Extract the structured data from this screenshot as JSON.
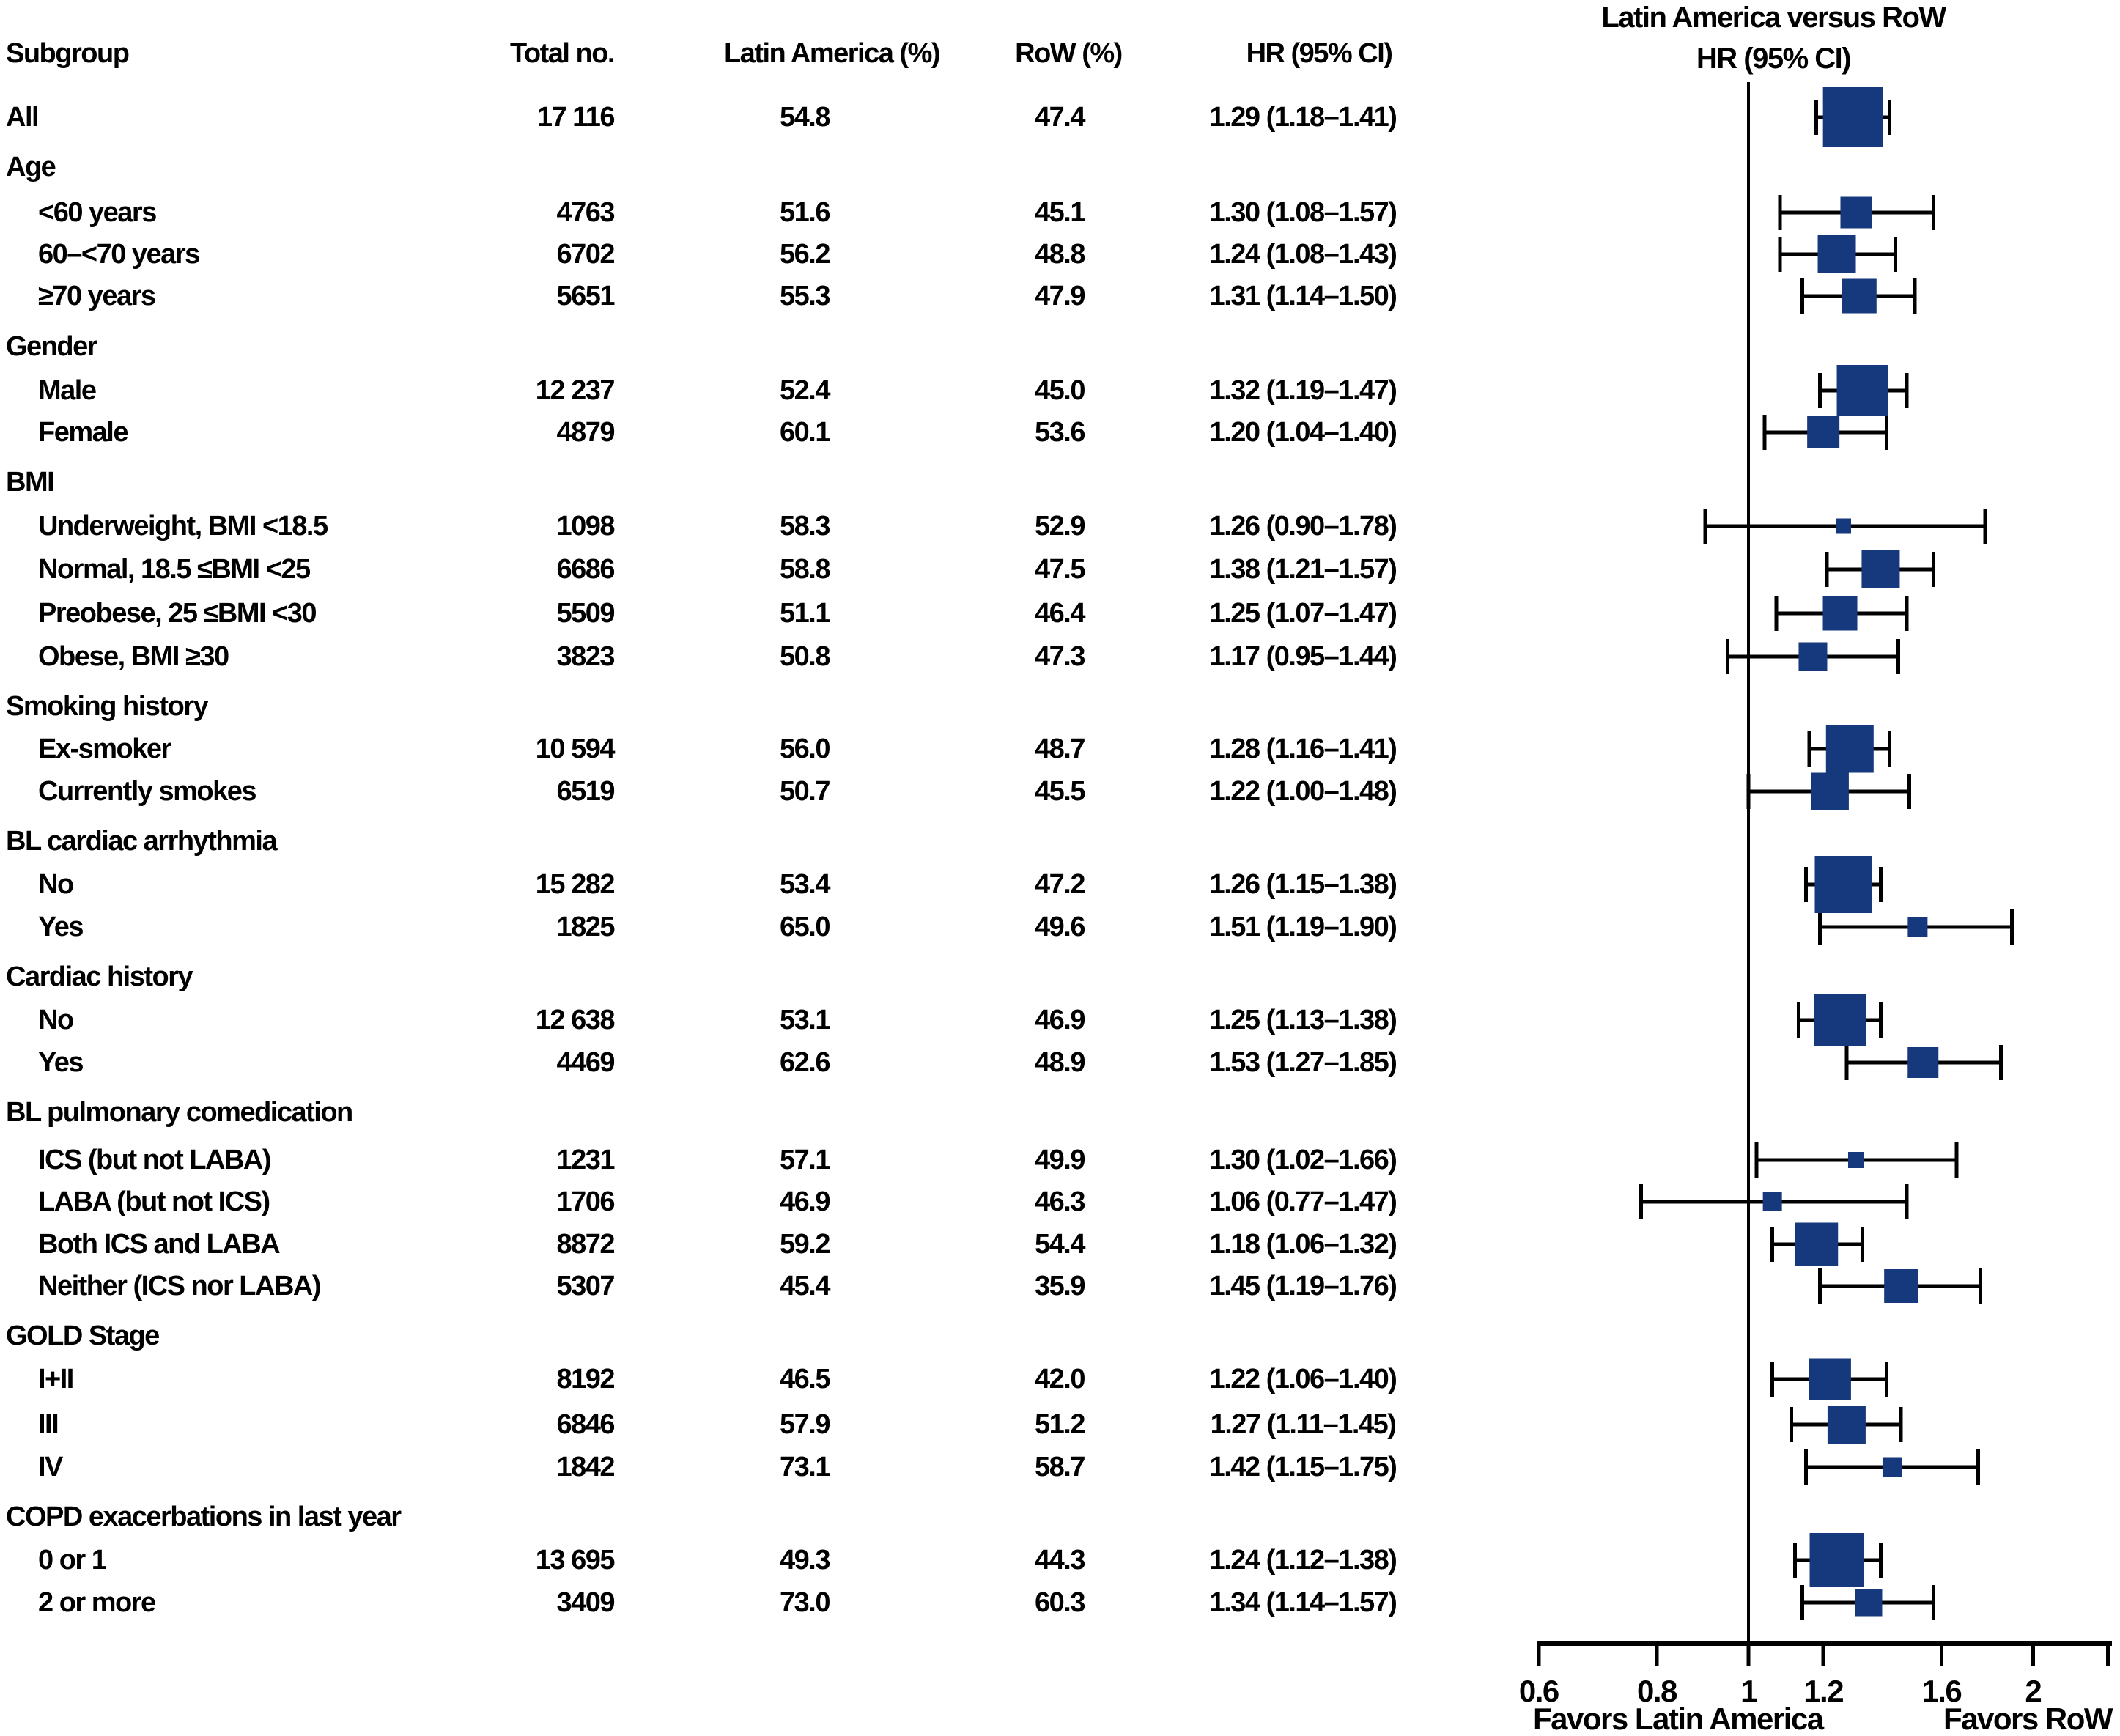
{
  "table": {
    "headers": {
      "subgroup": "Subgroup",
      "total": "Total no.",
      "latin_america": "Latin America (%)",
      "row_pct": "RoW (%)",
      "hr": "HR (95% CI)"
    }
  },
  "plot": {
    "title_line1": "Latin America versus RoW",
    "title_line2": "HR (95% CI)",
    "favors_left": "Favors Latin America",
    "favors_right": "Favors RoW",
    "marker_color": "#16387c",
    "line_color": "#000000",
    "ticks": [
      {
        "v": 0.6,
        "label": "0.6"
      },
      {
        "v": 0.8,
        "label": "0.8"
      },
      {
        "v": 1,
        "label": "1"
      },
      {
        "v": 1.2,
        "label": "1.2"
      },
      {
        "v": 1.6,
        "label": "1.6"
      },
      {
        "v": 2,
        "label": "2"
      },
      {
        "v": 2.4,
        "label": ""
      }
    ]
  },
  "rows": [
    {
      "kind": "item",
      "indent": 0,
      "label": "All",
      "total": "17 116",
      "la": "54.8",
      "row": "47.4",
      "hr_text": "1.29 (1.18–1.41)",
      "hr": 1.29,
      "lo": 1.18,
      "hi": 1.41,
      "n": 17116
    },
    {
      "kind": "group",
      "label": "Age"
    },
    {
      "kind": "item",
      "indent": 1,
      "label": "<60 years",
      "total": "4763",
      "la": "51.6",
      "row": "45.1",
      "hr_text": "1.30 (1.08–1.57)",
      "hr": 1.3,
      "lo": 1.08,
      "hi": 1.57,
      "n": 4763
    },
    {
      "kind": "item",
      "indent": 1,
      "label": "60–<70 years",
      "total": "6702",
      "la": "56.2",
      "row": "48.8",
      "hr_text": "1.24 (1.08–1.43)",
      "hr": 1.24,
      "lo": 1.08,
      "hi": 1.43,
      "n": 6702
    },
    {
      "kind": "item",
      "indent": 1,
      "label": "≥70 years",
      "total": "5651",
      "la": "55.3",
      "row": "47.9",
      "hr_text": "1.31 (1.14–1.50)",
      "hr": 1.31,
      "lo": 1.14,
      "hi": 1.5,
      "n": 5651
    },
    {
      "kind": "group",
      "label": "Gender"
    },
    {
      "kind": "item",
      "indent": 1,
      "label": "Male",
      "total": "12 237",
      "la": "52.4",
      "row": "45.0",
      "hr_text": "1.32 (1.19–1.47)",
      "hr": 1.32,
      "lo": 1.19,
      "hi": 1.47,
      "n": 12237
    },
    {
      "kind": "item",
      "indent": 1,
      "label": "Female",
      "total": "4879",
      "la": "60.1",
      "row": "53.6",
      "hr_text": "1.20 (1.04–1.40)",
      "hr": 1.2,
      "lo": 1.04,
      "hi": 1.4,
      "n": 4879
    },
    {
      "kind": "group",
      "label": "BMI"
    },
    {
      "kind": "item",
      "indent": 1,
      "label": "Underweight, BMI <18.5",
      "total": "1098",
      "la": "58.3",
      "row": "52.9",
      "hr_text": "1.26 (0.90–1.78)",
      "hr": 1.26,
      "lo": 0.9,
      "hi": 1.78,
      "n": 1098
    },
    {
      "kind": "item",
      "indent": 1,
      "label": "Normal, 18.5 ≤BMI <25",
      "total": "6686",
      "la": "58.8",
      "row": "47.5",
      "hr_text": "1.38 (1.21–1.57)",
      "hr": 1.38,
      "lo": 1.21,
      "hi": 1.57,
      "n": 6686
    },
    {
      "kind": "item",
      "indent": 1,
      "label": "Preobese, 25 ≤BMI <30",
      "total": "5509",
      "la": "51.1",
      "row": "46.4",
      "hr_text": "1.25 (1.07–1.47)",
      "hr": 1.25,
      "lo": 1.07,
      "hi": 1.47,
      "n": 5509
    },
    {
      "kind": "item",
      "indent": 1,
      "label": "Obese, BMI ≥30",
      "total": "3823",
      "la": "50.8",
      "row": "47.3",
      "hr_text": "1.17 (0.95–1.44)",
      "hr": 1.17,
      "lo": 0.95,
      "hi": 1.44,
      "n": 3823
    },
    {
      "kind": "group",
      "label": "Smoking history"
    },
    {
      "kind": "item",
      "indent": 1,
      "label": "Ex-smoker",
      "total": "10 594",
      "la": "56.0",
      "row": "48.7",
      "hr_text": "1.28 (1.16–1.41)",
      "hr": 1.28,
      "lo": 1.16,
      "hi": 1.41,
      "n": 10594
    },
    {
      "kind": "item",
      "indent": 1,
      "label": "Currently smokes",
      "total": "6519",
      "la": "50.7",
      "row": "45.5",
      "hr_text": "1.22 (1.00–1.48)",
      "hr": 1.22,
      "lo": 1.0,
      "hi": 1.48,
      "n": 6519
    },
    {
      "kind": "group",
      "label": "BL cardiac arrhythmia"
    },
    {
      "kind": "item",
      "indent": 1,
      "label": "No",
      "total": "15 282",
      "la": "53.4",
      "row": "47.2",
      "hr_text": "1.26 (1.15–1.38)",
      "hr": 1.26,
      "lo": 1.15,
      "hi": 1.38,
      "n": 15282
    },
    {
      "kind": "item",
      "indent": 1,
      "label": "Yes",
      "total": "1825",
      "la": "65.0",
      "row": "49.6",
      "hr_text": "1.51 (1.19–1.90)",
      "hr": 1.51,
      "lo": 1.19,
      "hi": 1.9,
      "n": 1825
    },
    {
      "kind": "group",
      "label": "Cardiac history"
    },
    {
      "kind": "item",
      "indent": 1,
      "label": "No",
      "total": "12 638",
      "la": "53.1",
      "row": "46.9",
      "hr_text": "1.25 (1.13–1.38)",
      "hr": 1.25,
      "lo": 1.13,
      "hi": 1.38,
      "n": 12638
    },
    {
      "kind": "item",
      "indent": 1,
      "label": "Yes",
      "total": "4469",
      "la": "62.6",
      "row": "48.9",
      "hr_text": "1.53 (1.27–1.85)",
      "hr": 1.53,
      "lo": 1.27,
      "hi": 1.85,
      "n": 4469
    },
    {
      "kind": "group",
      "label": "BL pulmonary comedication"
    },
    {
      "kind": "item",
      "indent": 1,
      "label": "ICS (but not LABA)",
      "total": "1231",
      "la": "57.1",
      "row": "49.9",
      "hr_text": "1.30 (1.02–1.66)",
      "hr": 1.3,
      "lo": 1.02,
      "hi": 1.66,
      "n": 1231
    },
    {
      "kind": "item",
      "indent": 1,
      "label": "LABA (but not ICS)",
      "total": "1706",
      "la": "46.9",
      "row": "46.3",
      "hr_text": "1.06 (0.77–1.47)",
      "hr": 1.06,
      "lo": 0.77,
      "hi": 1.47,
      "n": 1706
    },
    {
      "kind": "item",
      "indent": 1,
      "label": "Both ICS and LABA",
      "total": "8872",
      "la": "59.2",
      "row": "54.4",
      "hr_text": "1.18 (1.06–1.32)",
      "hr": 1.18,
      "lo": 1.06,
      "hi": 1.32,
      "n": 8872
    },
    {
      "kind": "item",
      "indent": 1,
      "label": "Neither (ICS nor LABA)",
      "total": "5307",
      "la": "45.4",
      "row": "35.9",
      "hr_text": "1.45 (1.19–1.76)",
      "hr": 1.45,
      "lo": 1.19,
      "hi": 1.76,
      "n": 5307
    },
    {
      "kind": "group",
      "label": "GOLD Stage"
    },
    {
      "kind": "item",
      "indent": 1,
      "label": "I+II",
      "total": "8192",
      "la": "46.5",
      "row": "42.0",
      "hr_text": "1.22 (1.06–1.40)",
      "hr": 1.22,
      "lo": 1.06,
      "hi": 1.4,
      "n": 8192
    },
    {
      "kind": "item",
      "indent": 1,
      "label": "III",
      "total": "6846",
      "la": "57.9",
      "row": "51.2",
      "hr_text": "1.27 (1.11–1.45)",
      "hr": 1.27,
      "lo": 1.11,
      "hi": 1.45,
      "n": 6846
    },
    {
      "kind": "item",
      "indent": 1,
      "label": "IV",
      "total": "1842",
      "la": "73.1",
      "row": "58.7",
      "hr_text": "1.42 (1.15–1.75)",
      "hr": 1.42,
      "lo": 1.15,
      "hi": 1.75,
      "n": 1842
    },
    {
      "kind": "group",
      "label": "COPD exacerbations in last year"
    },
    {
      "kind": "item",
      "indent": 1,
      "label": "0 or 1",
      "total": "13 695",
      "la": "49.3",
      "row": "44.3",
      "hr_text": "1.24 (1.12–1.38)",
      "hr": 1.24,
      "lo": 1.12,
      "hi": 1.38,
      "n": 13695
    },
    {
      "kind": "item",
      "indent": 1,
      "label": "2 or more",
      "total": "3409",
      "la": "73.0",
      "row": "60.3",
      "hr_text": "1.34 (1.14–1.57)",
      "hr": 1.34,
      "lo": 1.14,
      "hi": 1.57,
      "n": 3409
    }
  ],
  "chart_data": {
    "type": "scatter",
    "variant": "forest-plot",
    "title": "Latin America versus RoW HR (95% CI)",
    "xlabel_left": "Favors Latin America",
    "xlabel_right": "Favors RoW",
    "x_axis": {
      "scale": "log",
      "ticks": [
        0.6,
        0.8,
        1,
        1.2,
        1.6,
        2
      ],
      "range": [
        0.6,
        2.4
      ],
      "reference_line": 1
    },
    "marker": "square, area proportional to subgroup n, color #16387c, black CI whiskers with end caps",
    "series": [
      {
        "subgroup": "All",
        "n": 17116,
        "latin_america_pct": 54.8,
        "row_pct": 47.4,
        "hr": 1.29,
        "ci": [
          1.18,
          1.41
        ]
      },
      {
        "subgroup": "Age: <60 years",
        "n": 4763,
        "latin_america_pct": 51.6,
        "row_pct": 45.1,
        "hr": 1.3,
        "ci": [
          1.08,
          1.57
        ]
      },
      {
        "subgroup": "Age: 60–<70 years",
        "n": 6702,
        "latin_america_pct": 56.2,
        "row_pct": 48.8,
        "hr": 1.24,
        "ci": [
          1.08,
          1.43
        ]
      },
      {
        "subgroup": "Age: ≥70 years",
        "n": 5651,
        "latin_america_pct": 55.3,
        "row_pct": 47.9,
        "hr": 1.31,
        "ci": [
          1.14,
          1.5
        ]
      },
      {
        "subgroup": "Gender: Male",
        "n": 12237,
        "latin_america_pct": 52.4,
        "row_pct": 45.0,
        "hr": 1.32,
        "ci": [
          1.19,
          1.47
        ]
      },
      {
        "subgroup": "Gender: Female",
        "n": 4879,
        "latin_america_pct": 60.1,
        "row_pct": 53.6,
        "hr": 1.2,
        "ci": [
          1.04,
          1.4
        ]
      },
      {
        "subgroup": "BMI: Underweight, BMI <18.5",
        "n": 1098,
        "latin_america_pct": 58.3,
        "row_pct": 52.9,
        "hr": 1.26,
        "ci": [
          0.9,
          1.78
        ]
      },
      {
        "subgroup": "BMI: Normal, 18.5 ≤BMI <25",
        "n": 6686,
        "latin_america_pct": 58.8,
        "row_pct": 47.5,
        "hr": 1.38,
        "ci": [
          1.21,
          1.57
        ]
      },
      {
        "subgroup": "BMI: Preobese, 25 ≤BMI <30",
        "n": 5509,
        "latin_america_pct": 51.1,
        "row_pct": 46.4,
        "hr": 1.25,
        "ci": [
          1.07,
          1.47
        ]
      },
      {
        "subgroup": "BMI: Obese, BMI ≥30",
        "n": 3823,
        "latin_america_pct": 50.8,
        "row_pct": 47.3,
        "hr": 1.17,
        "ci": [
          0.95,
          1.44
        ]
      },
      {
        "subgroup": "Smoking history: Ex-smoker",
        "n": 10594,
        "latin_america_pct": 56.0,
        "row_pct": 48.7,
        "hr": 1.28,
        "ci": [
          1.16,
          1.41
        ]
      },
      {
        "subgroup": "Smoking history: Currently smokes",
        "n": 6519,
        "latin_america_pct": 50.7,
        "row_pct": 45.5,
        "hr": 1.22,
        "ci": [
          1.0,
          1.48
        ]
      },
      {
        "subgroup": "BL cardiac arrhythmia: No",
        "n": 15282,
        "latin_america_pct": 53.4,
        "row_pct": 47.2,
        "hr": 1.26,
        "ci": [
          1.15,
          1.38
        ]
      },
      {
        "subgroup": "BL cardiac arrhythmia: Yes",
        "n": 1825,
        "latin_america_pct": 65.0,
        "row_pct": 49.6,
        "hr": 1.51,
        "ci": [
          1.19,
          1.9
        ]
      },
      {
        "subgroup": "Cardiac history: No",
        "n": 12638,
        "latin_america_pct": 53.1,
        "row_pct": 46.9,
        "hr": 1.25,
        "ci": [
          1.13,
          1.38
        ]
      },
      {
        "subgroup": "Cardiac history: Yes",
        "n": 4469,
        "latin_america_pct": 62.6,
        "row_pct": 48.9,
        "hr": 1.53,
        "ci": [
          1.27,
          1.85
        ]
      },
      {
        "subgroup": "BL pulmonary comedication: ICS (but not LABA)",
        "n": 1231,
        "latin_america_pct": 57.1,
        "row_pct": 49.9,
        "hr": 1.3,
        "ci": [
          1.02,
          1.66
        ]
      },
      {
        "subgroup": "BL pulmonary comedication: LABA (but not ICS)",
        "n": 1706,
        "latin_america_pct": 46.9,
        "row_pct": 46.3,
        "hr": 1.06,
        "ci": [
          0.77,
          1.47
        ]
      },
      {
        "subgroup": "BL pulmonary comedication: Both ICS and LABA",
        "n": 8872,
        "latin_america_pct": 59.2,
        "row_pct": 54.4,
        "hr": 1.18,
        "ci": [
          1.06,
          1.32
        ]
      },
      {
        "subgroup": "BL pulmonary comedication: Neither (ICS nor LABA)",
        "n": 5307,
        "latin_america_pct": 45.4,
        "row_pct": 35.9,
        "hr": 1.45,
        "ci": [
          1.19,
          1.76
        ]
      },
      {
        "subgroup": "GOLD Stage: I+II",
        "n": 8192,
        "latin_america_pct": 46.5,
        "row_pct": 42.0,
        "hr": 1.22,
        "ci": [
          1.06,
          1.4
        ]
      },
      {
        "subgroup": "GOLD Stage: III",
        "n": 6846,
        "latin_america_pct": 57.9,
        "row_pct": 51.2,
        "hr": 1.27,
        "ci": [
          1.11,
          1.45
        ]
      },
      {
        "subgroup": "GOLD Stage: IV",
        "n": 1842,
        "latin_america_pct": 73.1,
        "row_pct": 58.7,
        "hr": 1.42,
        "ci": [
          1.15,
          1.75
        ]
      },
      {
        "subgroup": "COPD exacerbations in last year: 0 or 1",
        "n": 13695,
        "latin_america_pct": 49.3,
        "row_pct": 44.3,
        "hr": 1.24,
        "ci": [
          1.12,
          1.38
        ]
      },
      {
        "subgroup": "COPD exacerbations in last year: 2 or more",
        "n": 3409,
        "latin_america_pct": 73.0,
        "row_pct": 60.3,
        "hr": 1.34,
        "ci": [
          1.14,
          1.57
        ]
      }
    ]
  }
}
